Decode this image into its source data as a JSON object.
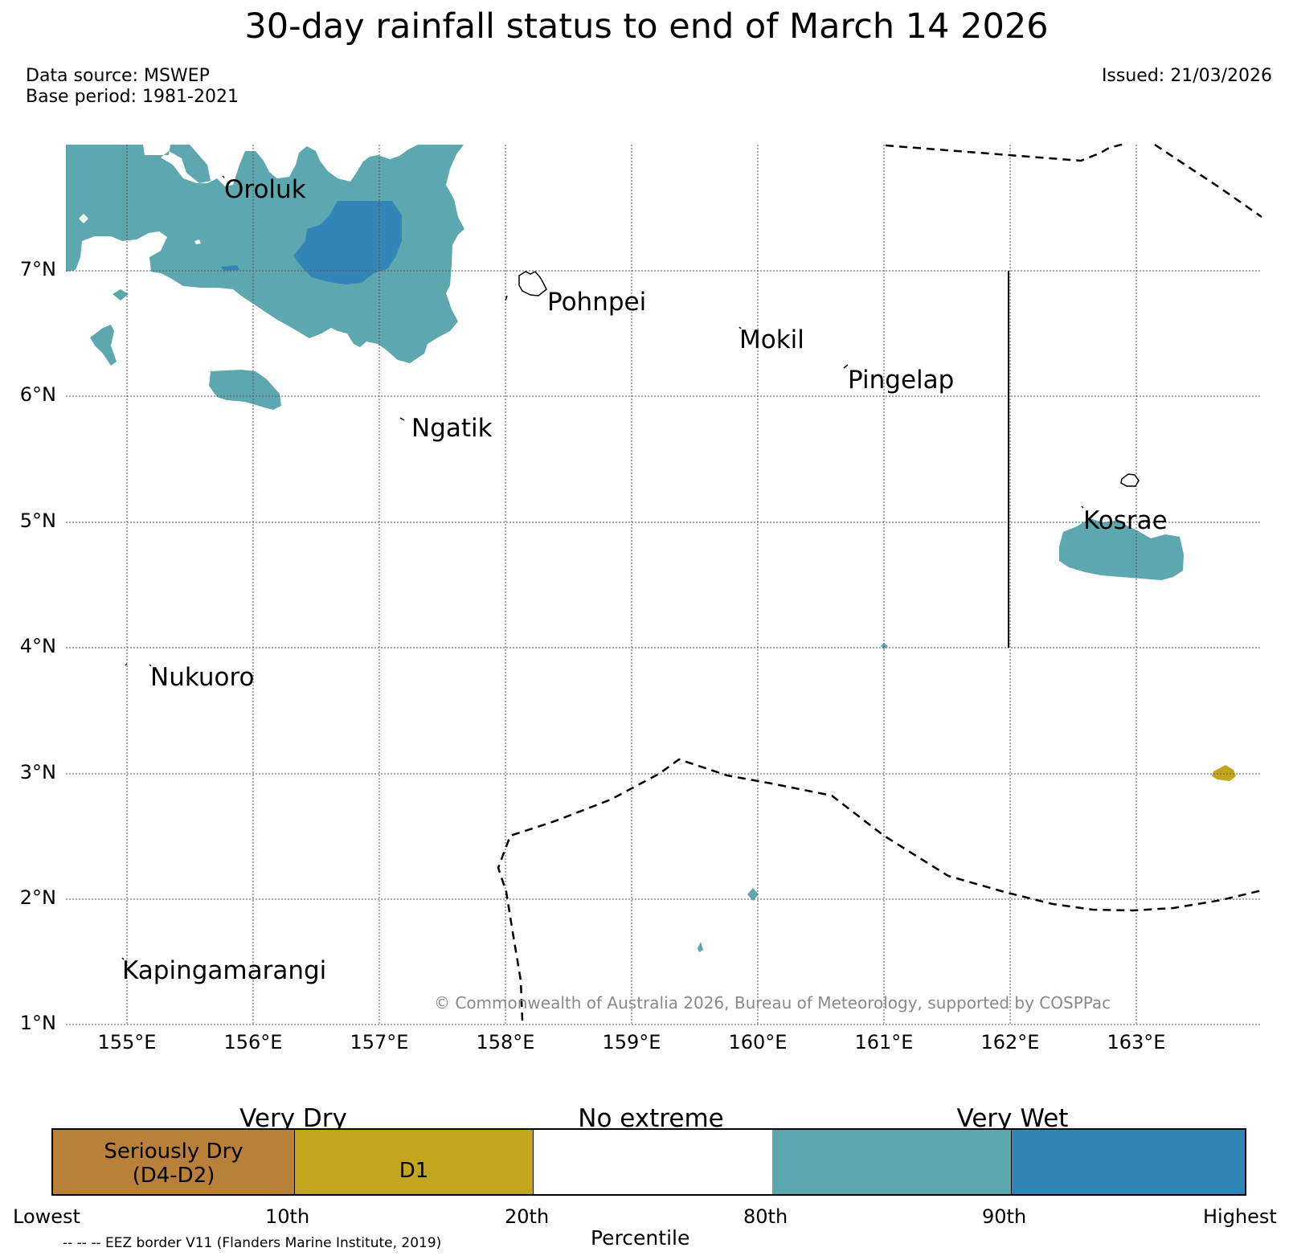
{
  "title": "30-day rainfall status to end of March 14 2026",
  "data_source": "Data source: MSWEP",
  "base_period": "Base period: 1981-2021",
  "issued": "Issued: 21/03/2026",
  "copyright": "© Commonwealth of Australia 2026, Bureau of Meteorology, supported by COSPPac",
  "map": {
    "lat_labels": [
      "7°N",
      "6°N",
      "5°N",
      "4°N",
      "3°N",
      "2°N",
      "1°N"
    ],
    "lon_labels": [
      "155°E",
      "156°E",
      "157°E",
      "158°E",
      "159°E",
      "160°E",
      "161°E",
      "162°E",
      "163°E"
    ],
    "places": [
      "Oroluk",
      "Pohnpei",
      "Mokil",
      "Pingelap",
      "Ngatik",
      "Kosrae",
      "Nukuoro",
      "Kapingamarangi"
    ]
  },
  "legend": {
    "categories": [
      "Very Dry",
      "No extreme",
      "Very Wet"
    ],
    "boxes": [
      {
        "label_line1": "Seriously Dry",
        "label_line2": "(D4-D2)",
        "color": "#b88039"
      },
      {
        "label_line1": "D1",
        "color": "#c4a51e"
      },
      {
        "color": "#ffffff"
      },
      {
        "color": "#5da8ae"
      },
      {
        "color": "#3185b7"
      }
    ],
    "percentiles": [
      "Lowest",
      "10th",
      "20th",
      "80th",
      "90th",
      "Highest"
    ],
    "axis_label": "Percentile",
    "eez_note": "-- -- -- EEZ border V11 (Flanders Marine Institute, 2019)"
  },
  "colors": {
    "very_wet": "#5da8ae",
    "highest": "#3185b7",
    "d1": "#c4a51e",
    "seriously_dry": "#b88039"
  }
}
